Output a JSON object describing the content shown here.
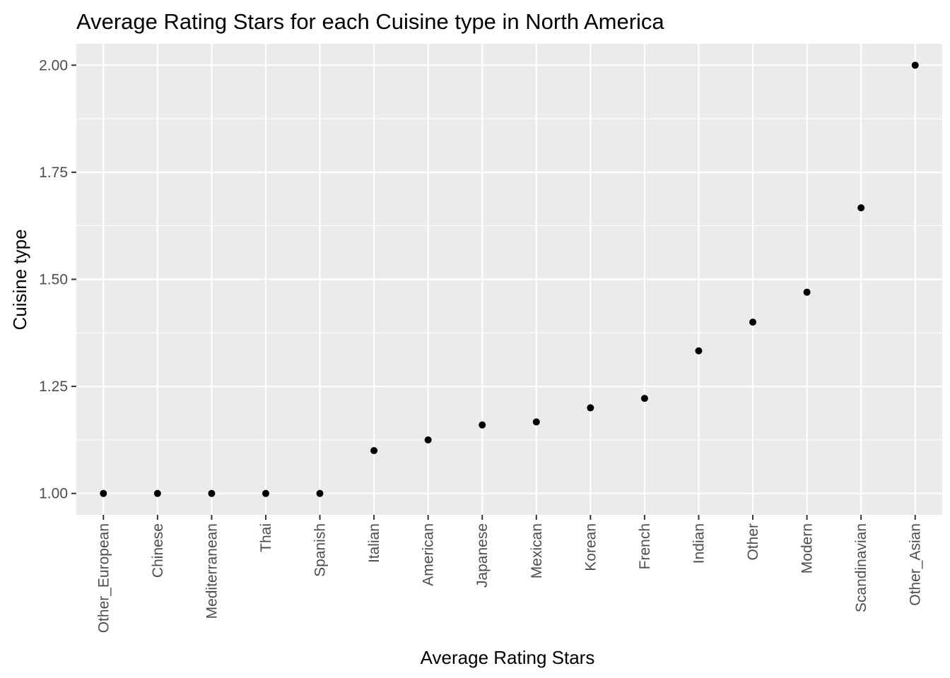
{
  "chart_data": {
    "type": "scatter",
    "title": "Average Rating Stars for each Cuisine type in North America",
    "xlabel": "Average Rating Stars",
    "ylabel": "Cuisine type",
    "categories": [
      "Other_European",
      "Chinese",
      "Mediterranean",
      "Thai",
      "Spanish",
      "Italian",
      "American",
      "Japanese",
      "Mexican",
      "Korean",
      "French",
      "Indian",
      "Other",
      "Modern",
      "Scandinavian",
      "Other_Asian"
    ],
    "values": [
      1.0,
      1.0,
      1.0,
      1.0,
      1.0,
      1.1,
      1.125,
      1.16,
      1.167,
      1.2,
      1.222,
      1.333,
      1.4,
      1.47,
      1.667,
      2.0
    ],
    "y_ticks": [
      "1.00",
      "1.25",
      "1.50",
      "1.75",
      "2.00"
    ],
    "y_tick_values": [
      1.0,
      1.25,
      1.5,
      1.75,
      2.0
    ],
    "ylim": [
      0.95,
      2.05
    ],
    "grid": true,
    "legend": "none",
    "colors": {
      "panel": "#ebebeb",
      "grid": "#ffffff",
      "point": "#000000",
      "tick": "#333333",
      "tick_label": "#4d4d4d"
    }
  }
}
